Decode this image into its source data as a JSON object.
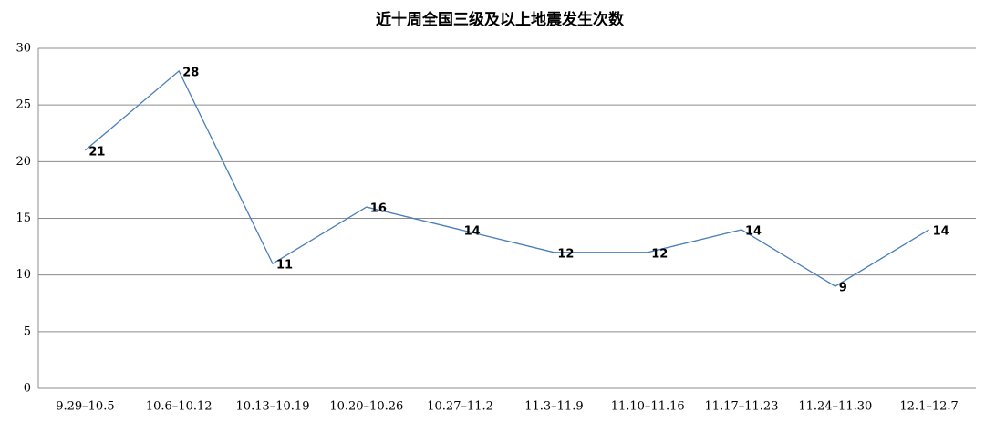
{
  "chart_data": {
    "type": "line",
    "title": "近十周全国三级及以上地震发生次数",
    "categories": [
      "9.29–10.5",
      "10.6–10.12",
      "10.13–10.19",
      "10.20–10.26",
      "10.27–11.2",
      "11.3–11.9",
      "11.10–11.16",
      "11.17–11.23",
      "11.24–11.30",
      "12.1–12.7"
    ],
    "values": [
      21,
      28,
      11,
      16,
      14,
      12,
      12,
      14,
      9,
      14
    ],
    "color": "#4a7ebb",
    "ylim": [
      0,
      30
    ],
    "yticks": [
      0,
      5,
      10,
      15,
      20,
      25,
      30
    ],
    "grid": true
  }
}
